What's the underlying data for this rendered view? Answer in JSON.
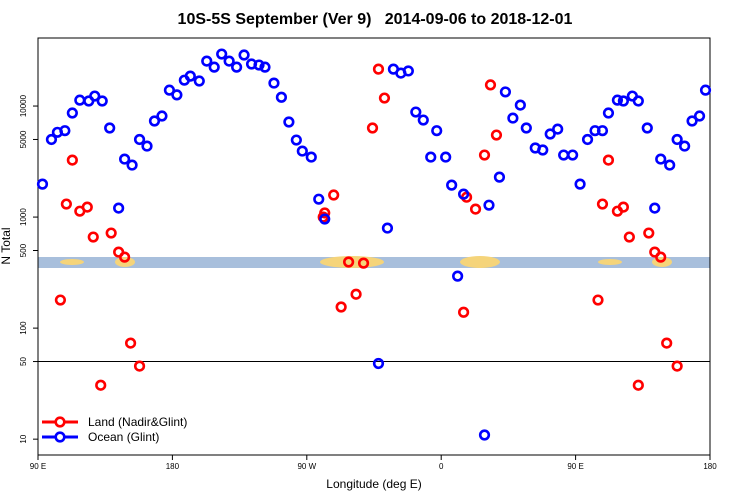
{
  "chart_data": {
    "type": "scatter",
    "title": "10S-5S September (Ver 9)   2014-09-06 to 2018-12-01",
    "x_label": "Longitude (deg E)",
    "y_label": "N Total",
    "log_y": true,
    "xlim": [
      90,
      540
    ],
    "ylim": [
      7.2,
      41000
    ],
    "xticks": [
      {
        "value": 90,
        "label": "90 E"
      },
      180,
      {
        "value": 270,
        "label": "90 W"
      },
      {
        "value": 360,
        "label": "0"
      },
      {
        "value": 450,
        "label": "90 E"
      },
      {
        "value": 540,
        "label": "180"
      }
    ],
    "yticks": [
      10,
      50,
      100,
      500,
      1000,
      5000,
      10000
    ],
    "reference_line": 50,
    "legend_position": "lower left",
    "series": [
      {
        "name": "Land (Nadir&Glint)",
        "color": "#ff0000",
        "x": [
          105,
          109,
          113,
          118,
          123,
          127,
          132,
          139,
          144,
          148,
          152,
          158,
          281,
          282,
          288,
          293,
          298,
          303,
          308,
          314,
          318,
          322,
          375,
          377,
          383,
          389,
          393,
          397,
          465,
          468,
          472,
          478,
          482,
          486,
          492,
          499,
          503,
          507,
          511,
          518
        ],
        "values": [
          179,
          1310,
          3260,
          1130,
          1230,
          661,
          30.6,
          718,
          484,
          436,
          73.3,
          45.5,
          1000,
          1090,
          1580,
          155,
          394,
          202,
          385,
          6340,
          21500,
          11800,
          139,
          1510,
          1180,
          3620,
          15500,
          5480,
          179,
          1310,
          3260,
          1130,
          1230,
          661,
          30.6,
          718,
          484,
          436,
          73.3,
          45.5
        ]
      },
      {
        "name": "Ocean (Glint)",
        "color": "#0000ff",
        "x": [
          93,
          99,
          103,
          108,
          113,
          118,
          124,
          128,
          133,
          138,
          144,
          148,
          153,
          158,
          163,
          168,
          173,
          178,
          183,
          188,
          192,
          198,
          203,
          208,
          213,
          218,
          223,
          228,
          233,
          238,
          242,
          248,
          253,
          258,
          263,
          267,
          273,
          278,
          282,
          324,
          318,
          328,
          333,
          338,
          343,
          348,
          353,
          357,
          363,
          367,
          371,
          375,
          389,
          392,
          399,
          403,
          408,
          413,
          417,
          423,
          428,
          433,
          438,
          442,
          448,
          453,
          458,
          463,
          468,
          472,
          478,
          482,
          488,
          492,
          498,
          503,
          507,
          513,
          518,
          523,
          528,
          533,
          537
        ],
        "values": [
          1980,
          5000,
          5800,
          6000,
          8650,
          11300,
          11100,
          12300,
          11100,
          6340,
          1205,
          3330,
          2940,
          5000,
          4360,
          7330,
          8130,
          13900,
          12600,
          17100,
          18600,
          16800,
          25400,
          22400,
          29400,
          25400,
          22400,
          28800,
          23900,
          23400,
          22400,
          16100,
          12000,
          7180,
          4940,
          3930,
          3470,
          1450,
          960,
          796,
          48,
          21500,
          19800,
          20700,
          8830,
          7480,
          3470,
          6000,
          3470,
          1940,
          294,
          1610,
          10.9,
          1280,
          2290,
          13400,
          7790,
          10200,
          6340,
          4190,
          4020,
          5600,
          6200,
          3620,
          3620,
          1980,
          5000,
          6000,
          6000,
          8650,
          11300,
          11100,
          12300,
          11100,
          6340,
          1205,
          3330,
          2940,
          5000,
          4360,
          7330,
          8130,
          13900
        ]
      }
    ]
  }
}
